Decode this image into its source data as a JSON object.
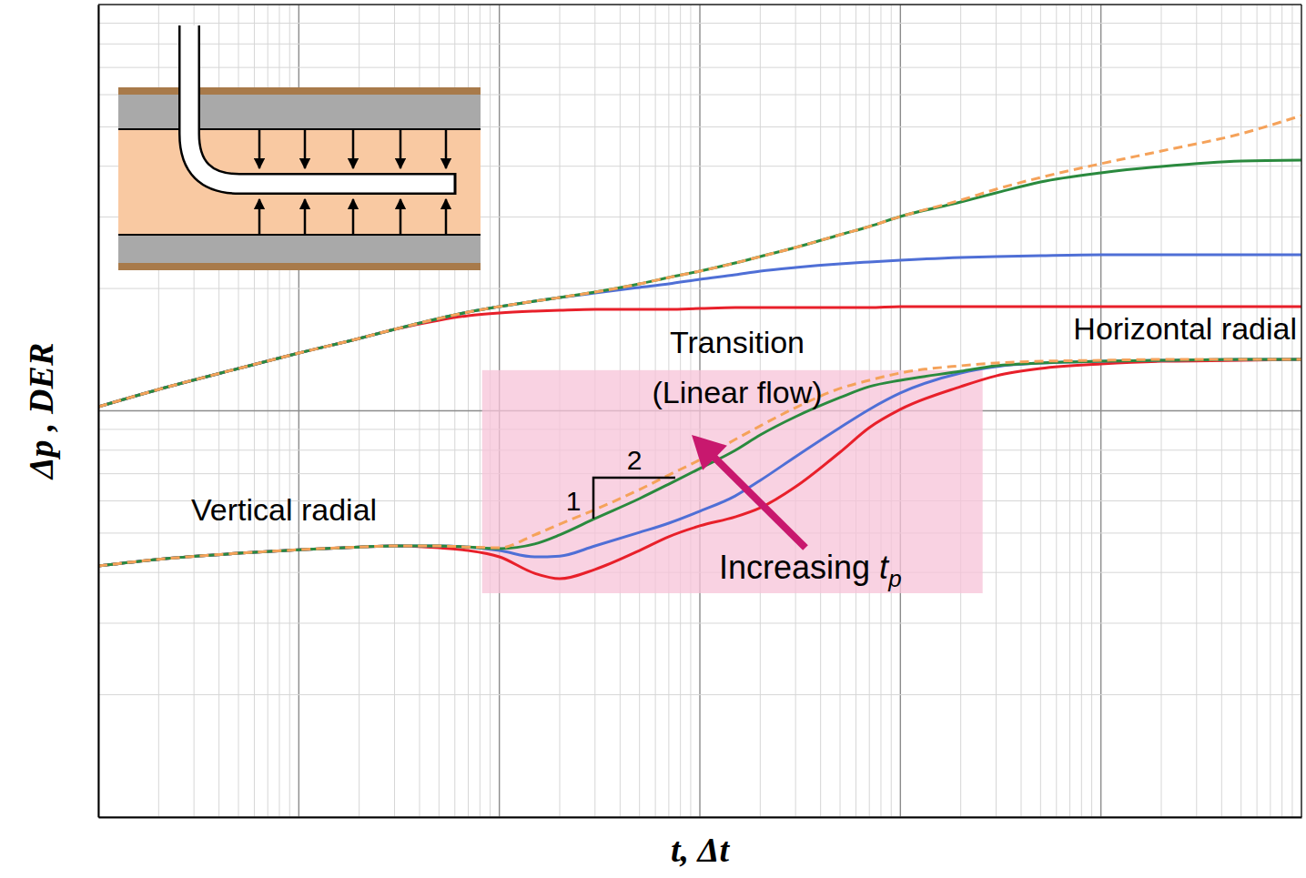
{
  "chart_data": {
    "type": "line",
    "x_label": "t, Δt",
    "y_label": "Δp , DER",
    "log": true,
    "grid": true,
    "tick_labels": false,
    "xlim": [
      0.001,
      1000
    ],
    "ylim": [
      0.1,
      10
    ],
    "xticks": [
      0.001,
      0.002,
      0.003,
      0.004,
      0.005,
      0.006,
      0.007,
      0.008,
      0.009,
      0.01,
      0.02,
      0.03,
      0.04,
      0.05,
      0.06,
      0.07,
      0.08,
      0.09,
      0.1,
      0.2,
      0.3,
      0.4,
      0.5,
      0.6,
      0.7,
      0.8,
      0.9,
      1,
      2,
      3,
      4,
      5,
      6,
      7,
      8,
      9,
      10,
      20,
      30,
      40,
      50,
      60,
      70,
      80,
      90,
      100,
      200,
      300,
      400,
      500,
      600,
      700,
      800,
      900,
      1000
    ],
    "yticks": [
      0.1,
      0.2,
      0.3,
      0.4,
      0.5,
      0.6,
      0.7,
      0.8,
      0.9,
      1,
      2,
      3,
      4,
      5,
      6,
      7,
      8,
      9,
      10
    ],
    "x": [
      0.001,
      0.002,
      0.005,
      0.01,
      0.02,
      0.03,
      0.05,
      0.07,
      0.1,
      0.15,
      0.2,
      0.3,
      0.5,
      0.7,
      1,
      1.5,
      2,
      3,
      5,
      7,
      10,
      20,
      30,
      50,
      100,
      200,
      500,
      1000
    ],
    "series": [
      {
        "color": "#e8202a",
        "line_style": "solid",
        "values": [
          1.023,
          1.129,
          1.271,
          1.387,
          1.507,
          1.587,
          1.671,
          1.714,
          1.741,
          1.759,
          1.768,
          1.777,
          1.777,
          1.777,
          1.786,
          1.795,
          1.795,
          1.795,
          1.795,
          1.795,
          1.805,
          1.805,
          1.805,
          1.805,
          1.805,
          1.805,
          1.805,
          1.805
        ]
      },
      {
        "color": "#4f6fd6",
        "line_style": "solid",
        "values": [
          1.023,
          1.129,
          1.271,
          1.387,
          1.507,
          1.587,
          1.688,
          1.75,
          1.805,
          1.862,
          1.9,
          1.95,
          2.012,
          2.053,
          2.107,
          2.162,
          2.207,
          2.253,
          2.3,
          2.324,
          2.348,
          2.385,
          2.397,
          2.41,
          2.422,
          2.422,
          2.422,
          2.422
        ]
      },
      {
        "color": "#2a8a3e",
        "line_style": "solid",
        "values": [
          1.023,
          1.129,
          1.271,
          1.387,
          1.507,
          1.587,
          1.688,
          1.75,
          1.805,
          1.862,
          1.9,
          1.96,
          2.053,
          2.129,
          2.207,
          2.311,
          2.397,
          2.523,
          2.713,
          2.842,
          3.008,
          3.266,
          3.439,
          3.659,
          3.853,
          3.994,
          4.12,
          4.14
        ]
      },
      {
        "color": "#e8202a",
        "line_style": "solid",
        "values": [
          0.415,
          0.431,
          0.446,
          0.455,
          0.462,
          0.465,
          0.46,
          0.453,
          0.437,
          0.398,
          0.386,
          0.407,
          0.453,
          0.49,
          0.521,
          0.548,
          0.577,
          0.65,
          0.791,
          0.909,
          1.008,
          1.147,
          1.219,
          1.271,
          1.304,
          1.324,
          1.331,
          1.338
        ]
      },
      {
        "color": "#4f6fd6",
        "line_style": "solid",
        "values": [
          0.415,
          0.431,
          0.446,
          0.455,
          0.462,
          0.465,
          0.465,
          0.462,
          0.453,
          0.437,
          0.439,
          0.465,
          0.502,
          0.529,
          0.566,
          0.617,
          0.674,
          0.771,
          0.909,
          1.008,
          1.106,
          1.239,
          1.284,
          1.311,
          1.324,
          1.331,
          1.338,
          1.338
        ]
      },
      {
        "color": "#2a8a3e",
        "line_style": "solid",
        "values": [
          0.415,
          0.431,
          0.446,
          0.455,
          0.462,
          0.465,
          0.465,
          0.462,
          0.458,
          0.47,
          0.495,
          0.543,
          0.608,
          0.66,
          0.721,
          0.799,
          0.872,
          0.967,
          1.078,
          1.147,
          1.189,
          1.251,
          1.291,
          1.311,
          1.324,
          1.331,
          1.338,
          1.338
        ]
      },
      {
        "color": "#f5a25a",
        "line_style": "dashed",
        "values": [
          1.023,
          1.129,
          1.271,
          1.387,
          1.507,
          1.587,
          1.688,
          1.75,
          1.805,
          1.862,
          1.9,
          1.96,
          2.053,
          2.129,
          2.207,
          2.311,
          2.397,
          2.523,
          2.713,
          2.842,
          3.008,
          3.301,
          3.511,
          3.753,
          4.057,
          4.36,
          4.808,
          5.332
        ]
      },
      {
        "color": "#f5a25a",
        "line_style": "dashed",
        "values": [
          0.415,
          0.431,
          0.446,
          0.455,
          0.462,
          0.465,
          0.465,
          0.462,
          0.46,
          0.495,
          0.526,
          0.571,
          0.64,
          0.695,
          0.758,
          0.85,
          0.918,
          1.018,
          1.135,
          1.189,
          1.239,
          1.291,
          1.311,
          1.324,
          1.331,
          1.338,
          1.338,
          1.338
        ]
      }
    ],
    "annotations": [
      "Vertical radial",
      "Transition",
      "(Linear flow)",
      "Horizontal radial"
    ],
    "arrow_label": {
      "text": "Increasing",
      "variable": "t",
      "subscript": "p"
    },
    "slope": {
      "rise": 1,
      "run": 2
    }
  }
}
